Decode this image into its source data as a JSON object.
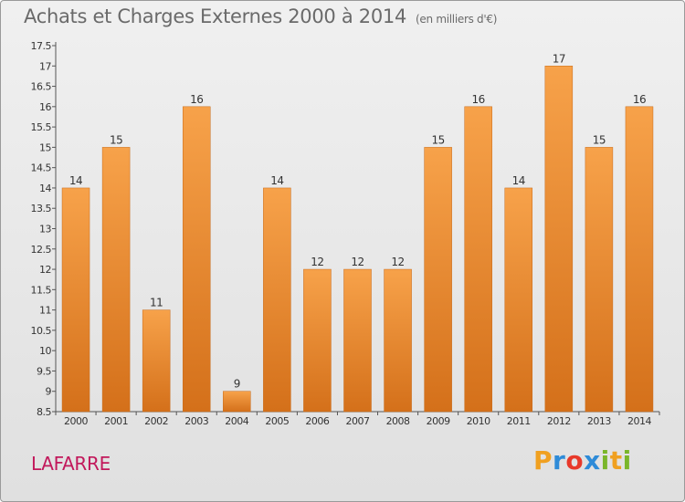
{
  "header": {
    "title": "Achats et Charges Externes 2000 à 2014",
    "subtitle": "(en milliers d'€)"
  },
  "footer": {
    "commune": "LAFARRE",
    "logo_letters": [
      "P",
      "r",
      "o",
      "x",
      "i",
      "t",
      "i"
    ],
    "logo_colors": [
      "#f0a020",
      "#2e8bd8",
      "#e8392a",
      "#2e8bd8",
      "#7ab62a",
      "#f0a020",
      "#7ab62a"
    ]
  },
  "colors": {
    "bar_light": "#f7a24a",
    "bar_dark": "#d4701a",
    "commune": "#c2185b",
    "title": "#6a6a6a"
  },
  "chart_data": {
    "type": "bar",
    "title": "Achats et Charges Externes 2000 à 2014",
    "subtitle": "(en milliers d'€)",
    "categories": [
      "2000",
      "2001",
      "2002",
      "2003",
      "2004",
      "2005",
      "2006",
      "2007",
      "2008",
      "2009",
      "2010",
      "2011",
      "2012",
      "2013",
      "2014"
    ],
    "values": [
      14,
      15,
      11,
      16,
      9,
      14,
      12,
      12,
      12,
      15,
      16,
      14,
      17,
      15,
      16
    ],
    "data_labels": [
      "14",
      "15",
      "11",
      "16",
      "9",
      "14",
      "12",
      "12",
      "12",
      "15",
      "16",
      "14",
      "17",
      "15",
      "16"
    ],
    "yticks": [
      "8.5",
      "9",
      "9.5",
      "10",
      "10.5",
      "11",
      "11.5",
      "12",
      "12.5",
      "13",
      "13.5",
      "14",
      "14.5",
      "15",
      "15.5",
      "16",
      "16.5",
      "17",
      "17.5"
    ],
    "ylim": [
      8.5,
      17.5
    ],
    "xlabel": "",
    "ylabel": "",
    "grid": false
  }
}
